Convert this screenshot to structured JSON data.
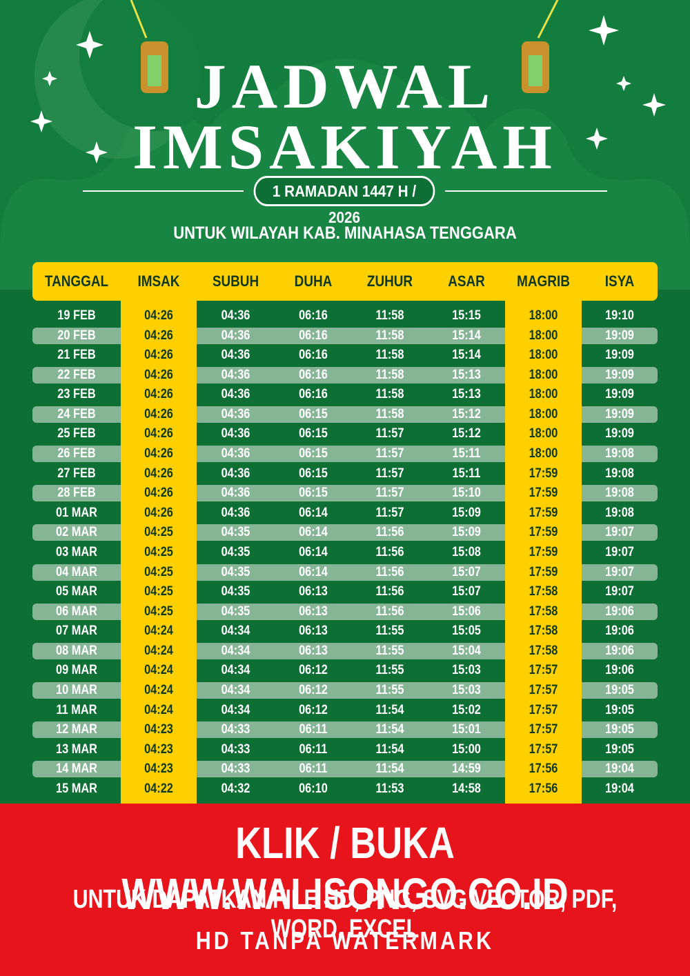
{
  "header": {
    "title_line1": "JADWAL",
    "title_line2": "IMSAKIYAH",
    "subtitle": "1 RAMADAN 1447 H / 2026",
    "region": "UNTUK WILAYAH KAB. MINAHASA TENGGARA"
  },
  "table": {
    "columns": [
      "TANGGAL",
      "IMSAK",
      "SUBUH",
      "DUHA",
      "ZUHUR",
      "ASAR",
      "MAGRIB",
      "ISYA"
    ],
    "rows": [
      [
        "19 FEB",
        "04:26",
        "04:36",
        "06:16",
        "11:58",
        "15:15",
        "18:00",
        "19:10"
      ],
      [
        "20 FEB",
        "04:26",
        "04:36",
        "06:16",
        "11:58",
        "15:14",
        "18:00",
        "19:09"
      ],
      [
        "21 FEB",
        "04:26",
        "04:36",
        "06:16",
        "11:58",
        "15:14",
        "18:00",
        "19:09"
      ],
      [
        "22 FEB",
        "04:26",
        "04:36",
        "06:16",
        "11:58",
        "15:13",
        "18:00",
        "19:09"
      ],
      [
        "23 FEB",
        "04:26",
        "04:36",
        "06:16",
        "11:58",
        "15:13",
        "18:00",
        "19:09"
      ],
      [
        "24 FEB",
        "04:26",
        "04:36",
        "06:15",
        "11:58",
        "15:12",
        "18:00",
        "19:09"
      ],
      [
        "25 FEB",
        "04:26",
        "04:36",
        "06:15",
        "11:57",
        "15:12",
        "18:00",
        "19:09"
      ],
      [
        "26 FEB",
        "04:26",
        "04:36",
        "06:15",
        "11:57",
        "15:11",
        "18:00",
        "19:08"
      ],
      [
        "27 FEB",
        "04:26",
        "04:36",
        "06:15",
        "11:57",
        "15:11",
        "17:59",
        "19:08"
      ],
      [
        "28 FEB",
        "04:26",
        "04:36",
        "06:15",
        "11:57",
        "15:10",
        "17:59",
        "19:08"
      ],
      [
        "01 MAR",
        "04:26",
        "04:36",
        "06:14",
        "11:57",
        "15:09",
        "17:59",
        "19:08"
      ],
      [
        "02 MAR",
        "04:25",
        "04:35",
        "06:14",
        "11:56",
        "15:09",
        "17:59",
        "19:07"
      ],
      [
        "03 MAR",
        "04:25",
        "04:35",
        "06:14",
        "11:56",
        "15:08",
        "17:59",
        "19:07"
      ],
      [
        "04 MAR",
        "04:25",
        "04:35",
        "06:14",
        "11:56",
        "15:07",
        "17:59",
        "19:07"
      ],
      [
        "05 MAR",
        "04:25",
        "04:35",
        "06:13",
        "11:56",
        "15:07",
        "17:58",
        "19:07"
      ],
      [
        "06 MAR",
        "04:25",
        "04:35",
        "06:13",
        "11:56",
        "15:06",
        "17:58",
        "19:06"
      ],
      [
        "07 MAR",
        "04:24",
        "04:34",
        "06:13",
        "11:55",
        "15:05",
        "17:58",
        "19:06"
      ],
      [
        "08 MAR",
        "04:24",
        "04:34",
        "06:13",
        "11:55",
        "15:04",
        "17:58",
        "19:06"
      ],
      [
        "09 MAR",
        "04:24",
        "04:34",
        "06:12",
        "11:55",
        "15:03",
        "17:57",
        "19:06"
      ],
      [
        "10 MAR",
        "04:24",
        "04:34",
        "06:12",
        "11:55",
        "15:03",
        "17:57",
        "19:05"
      ],
      [
        "11 MAR",
        "04:24",
        "04:34",
        "06:12",
        "11:54",
        "15:02",
        "17:57",
        "19:05"
      ],
      [
        "12 MAR",
        "04:23",
        "04:33",
        "06:11",
        "11:54",
        "15:01",
        "17:57",
        "19:05"
      ],
      [
        "13 MAR",
        "04:23",
        "04:33",
        "06:11",
        "11:54",
        "15:00",
        "17:57",
        "19:05"
      ],
      [
        "14 MAR",
        "04:23",
        "04:33",
        "06:11",
        "11:54",
        "14:59",
        "17:56",
        "19:04"
      ],
      [
        "15 MAR",
        "04:22",
        "04:32",
        "06:10",
        "11:53",
        "14:58",
        "17:56",
        "19:04"
      ]
    ]
  },
  "banner": {
    "line1": "KLIK / BUKA WWW.WALISONGO.CO.ID",
    "line2": "UNTUK DAPATKAN FILE HD, PNG, SVG VECTOR, PDF, WORD, EXCEL",
    "line3": "HD TANPA WATERMARK"
  }
}
